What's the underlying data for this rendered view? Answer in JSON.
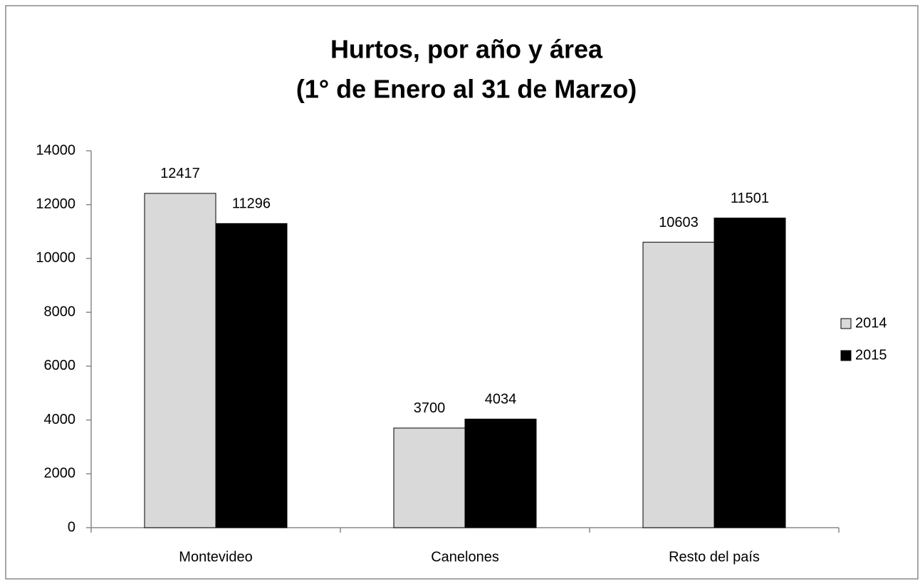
{
  "chart_data": {
    "type": "bar",
    "title": [
      "Hurtos, por año y área",
      "(1° de Enero al 31 de Marzo)"
    ],
    "categories": [
      "Montevideo",
      "Canelones",
      "Resto del país"
    ],
    "series": [
      {
        "name": "2014",
        "color": "#d9d9d9",
        "values": [
          12417,
          3700,
          10603
        ]
      },
      {
        "name": "2015",
        "color": "#000000",
        "values": [
          11296,
          4034,
          11501
        ]
      }
    ],
    "ylim": [
      0,
      14000
    ],
    "yticks": [
      0,
      2000,
      4000,
      6000,
      8000,
      10000,
      12000,
      14000
    ],
    "grid": false,
    "legend": "right"
  }
}
